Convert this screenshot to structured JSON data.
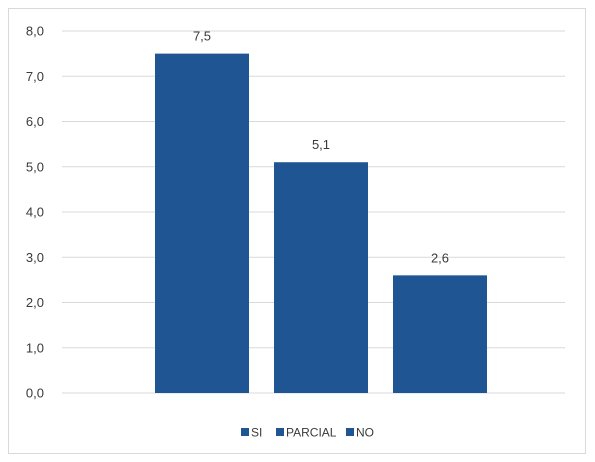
{
  "chart_data": {
    "type": "bar",
    "categories": [
      "SI",
      "PARCIAL",
      "NO"
    ],
    "values": [
      7.5,
      5.1,
      2.6
    ],
    "data_labels": [
      "7,5",
      "5,1",
      "2,6"
    ],
    "ylim": [
      0,
      8
    ],
    "y_ticks": [
      0,
      1,
      2,
      3,
      4,
      5,
      6,
      7,
      8
    ],
    "y_tick_labels": [
      "0,0",
      "1,0",
      "2,0",
      "3,0",
      "4,0",
      "5,0",
      "6,0",
      "7,0",
      "8,0"
    ],
    "grid": true,
    "legend_position": "bottom",
    "legend": [
      "SI",
      "PARCIAL",
      "NO"
    ],
    "bar_color": "#1f5592",
    "grid_color": "#d9d9d9"
  }
}
